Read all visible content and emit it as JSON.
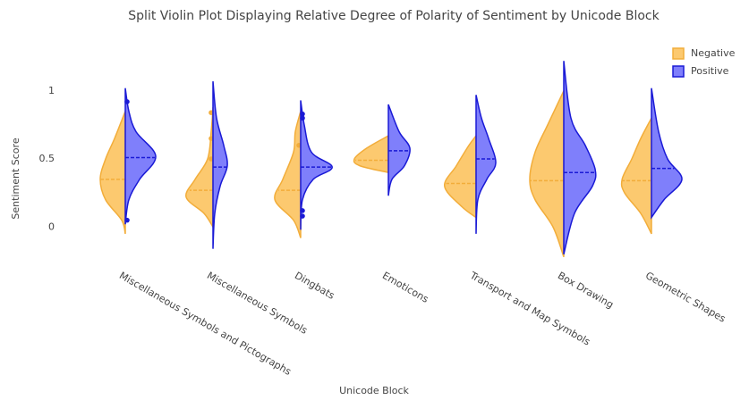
{
  "chart_data": {
    "type": "violin",
    "title": "Split Violin Plot Displaying Relative Degree of Polarity of Sentiment by Unicode Block",
    "x_label": "Unicode Block",
    "y_label": "Sentiment Score",
    "categories": [
      "Miscellaneous Symbols and Pictographs",
      "Miscellaneous Symbols",
      "Dingbats",
      "Emoticons",
      "Transport and Map Symbols",
      "Box Drawing",
      "Geometric Shapes"
    ],
    "ylim": [
      -0.3,
      1.3
    ],
    "yticks": [
      0,
      0.5,
      1
    ],
    "series": [
      {
        "name": "Negative",
        "color": "#fcc96f",
        "line_color": "#f2ad3a",
        "side": "negative",
        "violins": [
          {
            "scores": [
              -0.05,
              0.05,
              0.2,
              0.35,
              0.5,
              0.65,
              0.85
            ],
            "density": [
              0,
              0.1,
              0.55,
              0.7,
              0.55,
              0.3,
              0
            ],
            "mean": 0.35,
            "points": []
          },
          {
            "scores": [
              0,
              0.1,
              0.22,
              0.35,
              0.5,
              0.7,
              0.88
            ],
            "density": [
              0,
              0.25,
              0.75,
              0.5,
              0.15,
              0.05,
              0
            ],
            "mean": 0.27,
            "points": [
              0.84,
              0.65,
              0.5
            ]
          },
          {
            "scores": [
              -0.08,
              0.05,
              0.2,
              0.35,
              0.55,
              0.7,
              0.85
            ],
            "density": [
              0,
              0.2,
              0.72,
              0.5,
              0.2,
              0.15,
              0
            ],
            "mean": 0.27,
            "points": [
              0.6
            ]
          },
          {
            "scores": [
              0.4,
              0.45,
              0.5,
              0.58,
              0.67
            ],
            "density": [
              0,
              0.8,
              0.95,
              0.6,
              0
            ],
            "mean": 0.49,
            "points": []
          },
          {
            "scores": [
              0.07,
              0.15,
              0.3,
              0.45,
              0.6,
              0.67
            ],
            "density": [
              0,
              0.4,
              0.88,
              0.55,
              0.2,
              0
            ],
            "mean": 0.32,
            "points": []
          },
          {
            "scores": [
              -0.22,
              0,
              0.2,
              0.35,
              0.55,
              0.75,
              1.0
            ],
            "density": [
              0,
              0.3,
              0.8,
              0.95,
              0.8,
              0.45,
              0
            ],
            "mean": 0.34,
            "points": []
          },
          {
            "scores": [
              -0.05,
              0.1,
              0.25,
              0.35,
              0.5,
              0.65,
              0.8
            ],
            "density": [
              0,
              0.3,
              0.75,
              0.82,
              0.55,
              0.3,
              0
            ],
            "mean": 0.34,
            "points": []
          }
        ]
      },
      {
        "name": "Positive",
        "color": "#7f7ffb",
        "line_color": "#1a1ad6",
        "side": "positive",
        "violins": [
          {
            "scores": [
              0.02,
              0.2,
              0.35,
              0.52,
              0.7,
              0.85,
              1.02
            ],
            "density": [
              0,
              0.1,
              0.4,
              0.85,
              0.3,
              0.1,
              0
            ],
            "mean": 0.51,
            "points": [
              0.92,
              0.05
            ]
          },
          {
            "scores": [
              -0.16,
              0.1,
              0.3,
              0.45,
              0.6,
              0.8,
              1.07
            ],
            "density": [
              0,
              0.05,
              0.2,
              0.4,
              0.3,
              0.1,
              0
            ],
            "mean": 0.44,
            "points": []
          },
          {
            "scores": [
              -0.02,
              0.2,
              0.35,
              0.44,
              0.55,
              0.75,
              0.93
            ],
            "density": [
              0,
              0.05,
              0.35,
              0.88,
              0.3,
              0.1,
              0
            ],
            "mean": 0.44,
            "points": [
              0.83,
              0.8,
              0.12,
              0.08
            ]
          },
          {
            "scores": [
              0.23,
              0.35,
              0.45,
              0.58,
              0.7,
              0.9
            ],
            "density": [
              0,
              0.1,
              0.45,
              0.6,
              0.3,
              0
            ],
            "mean": 0.56,
            "points": []
          },
          {
            "scores": [
              -0.05,
              0.2,
              0.35,
              0.47,
              0.65,
              0.8,
              0.97
            ],
            "density": [
              0,
              0.05,
              0.3,
              0.55,
              0.35,
              0.15,
              0
            ],
            "mean": 0.5,
            "points": []
          },
          {
            "scores": [
              -0.2,
              0.1,
              0.3,
              0.42,
              0.6,
              0.8,
              1.22
            ],
            "density": [
              0,
              0.3,
              0.8,
              0.88,
              0.6,
              0.2,
              0
            ],
            "mean": 0.4,
            "points": []
          },
          {
            "scores": [
              0.07,
              0.2,
              0.35,
              0.5,
              0.7,
              1.02
            ],
            "density": [
              0,
              0.35,
              0.85,
              0.45,
              0.2,
              0
            ],
            "mean": 0.43,
            "points": []
          }
        ]
      }
    ]
  }
}
